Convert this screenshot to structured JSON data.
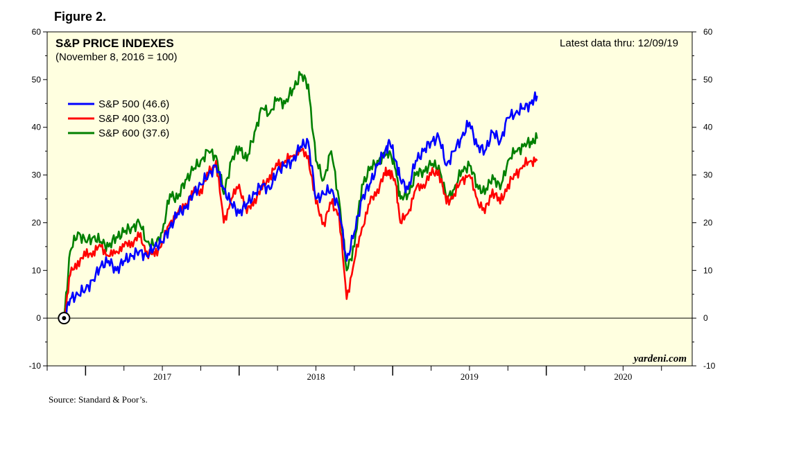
{
  "figure_label": "Figure 2.",
  "source": "Source: Standard & Poor’s.",
  "colors": {
    "plot_bg": "#ffffe0",
    "sp500": "#0000ff",
    "sp400": "#ff0000",
    "sp600": "#008000"
  },
  "chart_data": {
    "type": "line",
    "title": "S&P PRICE INDEXES",
    "subtitle": "(November 8, 2016 = 100)",
    "latest": "Latest data thru: 12/09/19",
    "brand": "yardeni.com",
    "ylim": [
      -10,
      60
    ],
    "yticks": [
      -10,
      0,
      10,
      20,
      30,
      40,
      50,
      60
    ],
    "ytick_labels": [
      "-10",
      "0",
      "10",
      "20",
      "30",
      "40",
      "50",
      "60"
    ],
    "xlim": [
      2016.75,
      2020.95
    ],
    "x_year_labels": [
      {
        "x": 2017.5,
        "label": "2017"
      },
      {
        "x": 2018.5,
        "label": "2018"
      },
      {
        "x": 2019.5,
        "label": "2019"
      },
      {
        "x": 2020.5,
        "label": "2020"
      }
    ],
    "legend_position": "top-left",
    "grid": false,
    "series": [
      {
        "name": "S&P 500 (46.6)",
        "color": "#0000ff",
        "x": [
          2016.86,
          2016.9,
          2016.95,
          2017.0,
          2017.05,
          2017.1,
          2017.15,
          2017.2,
          2017.25,
          2017.3,
          2017.35,
          2017.4,
          2017.45,
          2017.5,
          2017.55,
          2017.6,
          2017.65,
          2017.7,
          2017.75,
          2017.8,
          2017.85,
          2017.9,
          2017.95,
          2018.0,
          2018.05,
          2018.1,
          2018.15,
          2018.2,
          2018.25,
          2018.3,
          2018.35,
          2018.4,
          2018.45,
          2018.5,
          2018.55,
          2018.6,
          2018.65,
          2018.7,
          2018.75,
          2018.8,
          2018.85,
          2018.9,
          2018.95,
          2018.98,
          2019.02,
          2019.05,
          2019.1,
          2019.15,
          2019.2,
          2019.25,
          2019.3,
          2019.35,
          2019.4,
          2019.45,
          2019.5,
          2019.55,
          2019.6,
          2019.65,
          2019.7,
          2019.75,
          2019.8,
          2019.85,
          2019.9,
          2019.94
        ],
        "y": [
          0,
          4,
          5,
          6,
          8,
          11,
          12,
          10,
          12,
          13,
          14,
          13,
          15,
          16,
          19,
          22,
          23,
          26,
          28,
          30,
          32,
          27,
          24,
          22,
          24,
          26,
          28,
          27,
          31,
          32,
          33,
          36,
          37,
          25,
          26,
          27,
          23,
          12,
          18,
          25,
          28,
          32,
          35,
          37,
          33,
          29,
          27,
          33,
          35,
          37,
          38,
          32,
          35,
          38,
          41,
          36,
          35,
          39,
          37,
          42,
          43,
          44,
          45,
          46.6
        ]
      },
      {
        "name": "S&P 400 (33.0)",
        "color": "#ff0000",
        "x": [
          2016.86,
          2016.9,
          2016.95,
          2017.0,
          2017.05,
          2017.1,
          2017.15,
          2017.2,
          2017.25,
          2017.3,
          2017.35,
          2017.4,
          2017.45,
          2017.5,
          2017.55,
          2017.6,
          2017.65,
          2017.7,
          2017.75,
          2017.8,
          2017.85,
          2017.9,
          2017.95,
          2018.0,
          2018.05,
          2018.1,
          2018.15,
          2018.2,
          2018.25,
          2018.3,
          2018.35,
          2018.4,
          2018.45,
          2018.5,
          2018.55,
          2018.6,
          2018.65,
          2018.7,
          2018.75,
          2018.8,
          2018.85,
          2018.9,
          2018.95,
          2018.98,
          2019.02,
          2019.05,
          2019.1,
          2019.15,
          2019.2,
          2019.25,
          2019.3,
          2019.35,
          2019.4,
          2019.45,
          2019.5,
          2019.55,
          2019.6,
          2019.65,
          2019.7,
          2019.75,
          2019.8,
          2019.85,
          2019.9,
          2019.94
        ],
        "y": [
          0,
          9,
          12,
          13,
          14,
          15,
          13,
          14,
          15,
          16,
          17,
          14,
          13,
          16,
          20,
          22,
          24,
          26,
          27,
          30,
          33,
          20,
          25,
          28,
          22,
          25,
          27,
          30,
          32,
          33,
          34,
          35,
          34,
          24,
          20,
          24,
          22,
          4,
          12,
          19,
          24,
          27,
          30,
          31,
          28,
          20,
          22,
          27,
          28,
          30,
          31,
          24,
          26,
          29,
          30,
          25,
          22,
          27,
          24,
          28,
          30,
          32,
          33,
          33.0
        ]
      },
      {
        "name": "S&P 600 (37.6)",
        "color": "#008000",
        "x": [
          2016.86,
          2016.9,
          2016.95,
          2017.0,
          2017.05,
          2017.1,
          2017.15,
          2017.2,
          2017.25,
          2017.3,
          2017.35,
          2017.4,
          2017.45,
          2017.5,
          2017.55,
          2017.6,
          2017.65,
          2017.7,
          2017.75,
          2017.8,
          2017.85,
          2017.9,
          2017.95,
          2018.0,
          2018.05,
          2018.1,
          2018.15,
          2018.2,
          2018.25,
          2018.3,
          2018.35,
          2018.4,
          2018.45,
          2018.5,
          2018.55,
          2018.6,
          2018.65,
          2018.7,
          2018.75,
          2018.8,
          2018.85,
          2018.9,
          2018.95,
          2018.98,
          2019.02,
          2019.05,
          2019.1,
          2019.15,
          2019.2,
          2019.25,
          2019.3,
          2019.35,
          2019.4,
          2019.45,
          2019.5,
          2019.55,
          2019.6,
          2019.65,
          2019.7,
          2019.75,
          2019.8,
          2019.85,
          2019.9,
          2019.94
        ],
        "y": [
          0,
          14,
          18,
          16,
          17,
          16,
          15,
          17,
          18,
          19,
          20,
          16,
          15,
          18,
          26,
          25,
          29,
          31,
          33,
          35,
          34,
          26,
          33,
          36,
          33,
          39,
          44,
          43,
          46,
          45,
          48,
          51,
          49,
          33,
          29,
          35,
          25,
          10,
          15,
          28,
          31,
          33,
          34,
          35,
          31,
          25,
          26,
          30,
          31,
          32,
          32,
          25,
          27,
          31,
          32,
          28,
          26,
          30,
          27,
          33,
          35,
          36,
          37,
          37.6
        ]
      }
    ]
  }
}
